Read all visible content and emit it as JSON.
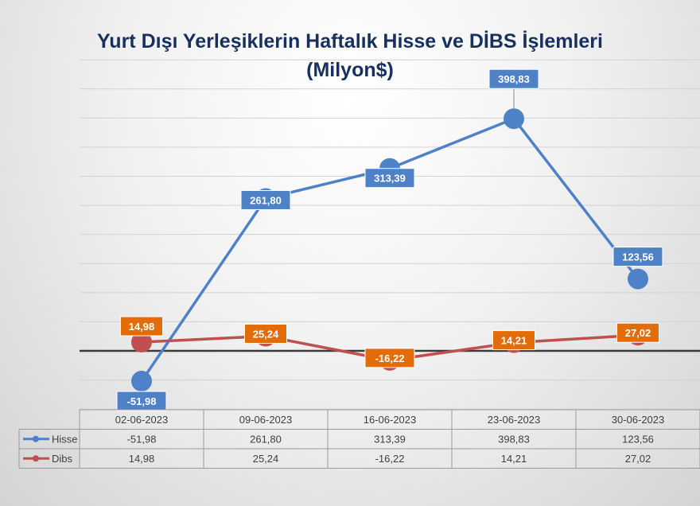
{
  "chart_data": {
    "type": "line",
    "title": [
      "Yurt Dışı Yerleşiklerin Haftalık Hisse ve DİBS İşlemleri",
      "(Milyon$)"
    ],
    "categories": [
      "02-06-2023",
      "09-06-2023",
      "16-06-2023",
      "23-06-2023",
      "30-06-2023"
    ],
    "series": [
      {
        "name": "Hisse",
        "values": [
          -51.98,
          261.8,
          313.39,
          398.83,
          123.56
        ],
        "labels": [
          "-51,98",
          "261,80",
          "313,39",
          "398,83",
          "123,56"
        ],
        "color": "#4f81c7",
        "label_color": "#4f81c7"
      },
      {
        "name": "Dibs",
        "values": [
          14.98,
          25.24,
          -16.22,
          14.21,
          27.02
        ],
        "labels": [
          "14,98",
          "25,24",
          "-16,22",
          "14,21",
          "27,02"
        ],
        "color": "#c0504d",
        "label_color": "#e36c09"
      }
    ],
    "ylim": [
      -100,
      500
    ],
    "grid": true,
    "data_table": true,
    "legend": "data-table"
  }
}
